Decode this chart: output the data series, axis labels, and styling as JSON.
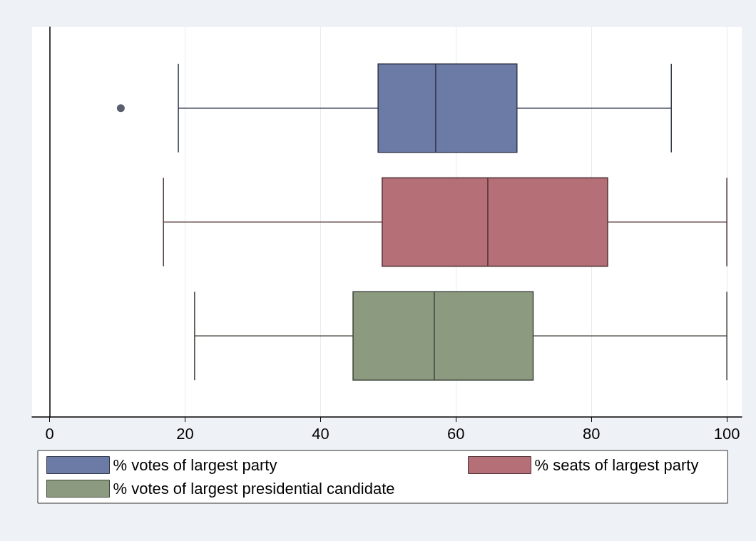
{
  "chart_data": {
    "type": "box",
    "orientation": "horizontal",
    "categories": [
      null
    ],
    "series": [
      {
        "name": "% votes of largest party",
        "color": "#6c7ba6",
        "boxes": [
          {
            "low": 19,
            "q1": 48.5,
            "median": 57,
            "q3": 69,
            "high": 91.8,
            "outliers": [
              10.5
            ]
          }
        ]
      },
      {
        "name": "% seats of largest party",
        "color": "#b56f76",
        "boxes": [
          {
            "low": 16.8,
            "q1": 49.1,
            "median": 64.7,
            "q3": 82.4,
            "high": 100
          }
        ]
      },
      {
        "name": "% votes of largest presidential candidate",
        "color": "#8c9b80",
        "boxes": [
          {
            "low": 21.4,
            "q1": 44.8,
            "median": 56.8,
            "q3": 71.4,
            "high": 100
          }
        ]
      }
    ],
    "xlim": [
      -2.6,
      102.2
    ],
    "xticks": [
      0,
      20,
      40,
      60,
      80,
      100
    ],
    "grid": "x",
    "legend": "bottom"
  }
}
